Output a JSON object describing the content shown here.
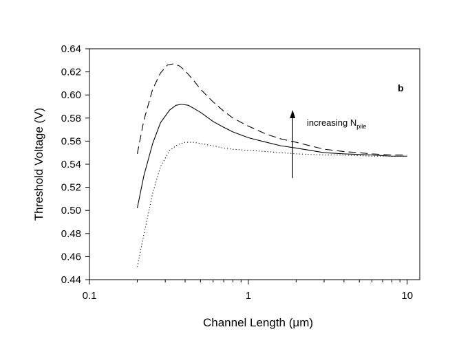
{
  "chart_data": {
    "type": "line",
    "xlabel": "Channel Length (μm)",
    "ylabel": "Threshold Voltage (V)",
    "xscale": "log",
    "xlim": [
      0.1,
      12
    ],
    "ylim": [
      0.44,
      0.64
    ],
    "x_ticks": [
      "0.1",
      "1",
      "10"
    ],
    "y_ticks": [
      "0.44",
      "0.46",
      "0.48",
      "0.50",
      "0.52",
      "0.54",
      "0.56",
      "0.58",
      "0.60",
      "0.62",
      "0.64"
    ],
    "panel_label": "b",
    "annotation": {
      "text": "increasing N",
      "subscript": "pile",
      "arrow_x": 1.9,
      "arrow_y_from": 0.528,
      "arrow_y_to": 0.587
    },
    "grid": false,
    "series": [
      {
        "style": "dotted",
        "x": [
          0.2,
          0.22,
          0.25,
          0.28,
          0.32,
          0.36,
          0.4,
          0.45,
          0.5,
          0.6,
          0.7,
          0.8,
          1.0,
          1.3,
          1.6,
          2.0,
          3.0,
          4.0,
          6.0,
          8.0,
          10.0
        ],
        "y": [
          0.451,
          0.479,
          0.515,
          0.538,
          0.552,
          0.557,
          0.559,
          0.559,
          0.558,
          0.556,
          0.554,
          0.553,
          0.552,
          0.551,
          0.55,
          0.549,
          0.548,
          0.548,
          0.547,
          0.547,
          0.547
        ]
      },
      {
        "style": "solid",
        "x": [
          0.2,
          0.22,
          0.25,
          0.28,
          0.32,
          0.35,
          0.38,
          0.42,
          0.5,
          0.6,
          0.7,
          0.8,
          1.0,
          1.3,
          1.6,
          2.0,
          3.0,
          4.0,
          6.0,
          8.0,
          10.0
        ],
        "y": [
          0.502,
          0.53,
          0.558,
          0.576,
          0.587,
          0.591,
          0.592,
          0.591,
          0.585,
          0.577,
          0.572,
          0.568,
          0.563,
          0.559,
          0.556,
          0.554,
          0.55,
          0.549,
          0.548,
          0.547,
          0.547
        ]
      },
      {
        "style": "dashed",
        "x": [
          0.2,
          0.22,
          0.25,
          0.28,
          0.31,
          0.34,
          0.37,
          0.4,
          0.45,
          0.5,
          0.6,
          0.7,
          0.8,
          1.0,
          1.3,
          1.6,
          2.0,
          3.0,
          4.0,
          6.0,
          8.0,
          10.0
        ],
        "y": [
          0.549,
          0.578,
          0.605,
          0.619,
          0.626,
          0.627,
          0.625,
          0.621,
          0.613,
          0.605,
          0.594,
          0.586,
          0.58,
          0.573,
          0.566,
          0.562,
          0.559,
          0.553,
          0.551,
          0.549,
          0.548,
          0.548
        ]
      }
    ]
  }
}
